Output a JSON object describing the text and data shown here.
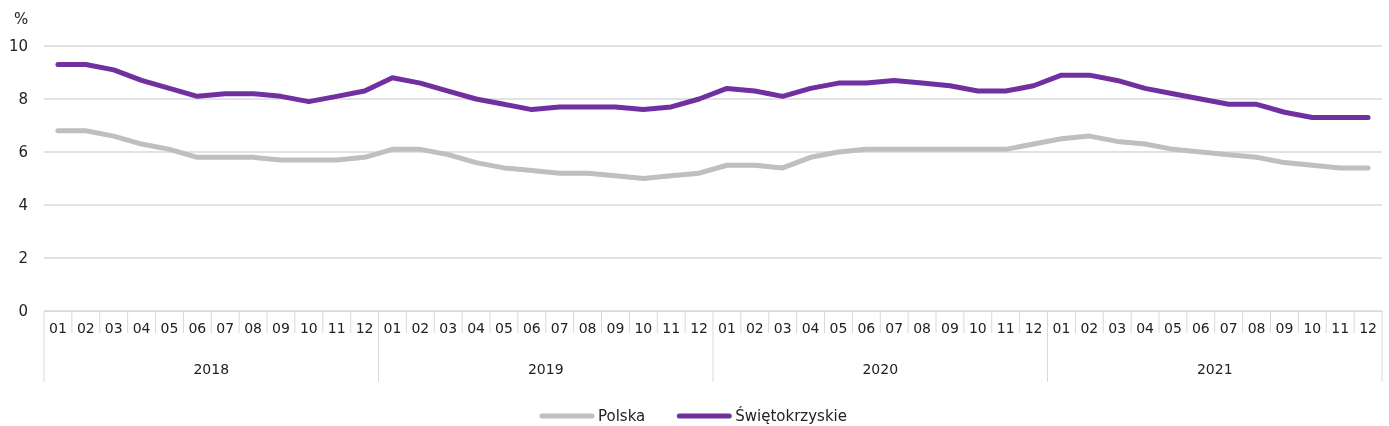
{
  "chart_data": {
    "type": "line",
    "ylabel": "%",
    "categories": [
      "01",
      "02",
      "03",
      "04",
      "05",
      "06",
      "07",
      "08",
      "09",
      "10",
      "11",
      "12",
      "01",
      "02",
      "03",
      "04",
      "05",
      "06",
      "07",
      "08",
      "09",
      "10",
      "11",
      "12",
      "01",
      "02",
      "03",
      "04",
      "05",
      "06",
      "07",
      "08",
      "09",
      "10",
      "11",
      "12",
      "01",
      "02",
      "03",
      "04",
      "05",
      "06",
      "07",
      "08",
      "09",
      "10",
      "11",
      "12"
    ],
    "annotations": [
      "2018",
      "2019",
      "2020",
      "2021"
    ],
    "series": [
      {
        "name": "Polska",
        "color": "#bfbfbf",
        "values": [
          6.8,
          6.8,
          6.6,
          6.3,
          6.1,
          5.8,
          5.8,
          5.8,
          5.7,
          5.7,
          5.7,
          5.8,
          6.1,
          6.1,
          5.9,
          5.6,
          5.4,
          5.3,
          5.2,
          5.2,
          5.1,
          5.0,
          5.1,
          5.2,
          5.5,
          5.5,
          5.4,
          5.8,
          6.0,
          6.1,
          6.1,
          6.1,
          6.1,
          6.1,
          6.1,
          6.3,
          6.5,
          6.6,
          6.4,
          6.3,
          6.1,
          6.0,
          5.9,
          5.8,
          5.6,
          5.5,
          5.4,
          5.4
        ]
      },
      {
        "name": "Świętokrzyskie",
        "color": "#7030a0",
        "values": [
          9.3,
          9.3,
          9.1,
          8.7,
          8.4,
          8.1,
          8.2,
          8.2,
          8.1,
          7.9,
          8.1,
          8.3,
          8.8,
          8.6,
          8.3,
          8.0,
          7.8,
          7.6,
          7.7,
          7.7,
          7.7,
          7.6,
          7.7,
          8.0,
          8.4,
          8.3,
          8.1,
          8.4,
          8.6,
          8.6,
          8.7,
          8.6,
          8.5,
          8.3,
          8.3,
          8.5,
          8.9,
          8.9,
          8.7,
          8.4,
          8.2,
          8.0,
          7.8,
          7.8,
          7.5,
          7.3,
          7.3,
          7.3
        ]
      }
    ],
    "ylim": [
      0,
      10
    ],
    "yticks": [
      0,
      2,
      4,
      6,
      8,
      10
    ],
    "grid": "y",
    "legend": "bottom",
    "marker": "none",
    "line_style": "solid"
  }
}
